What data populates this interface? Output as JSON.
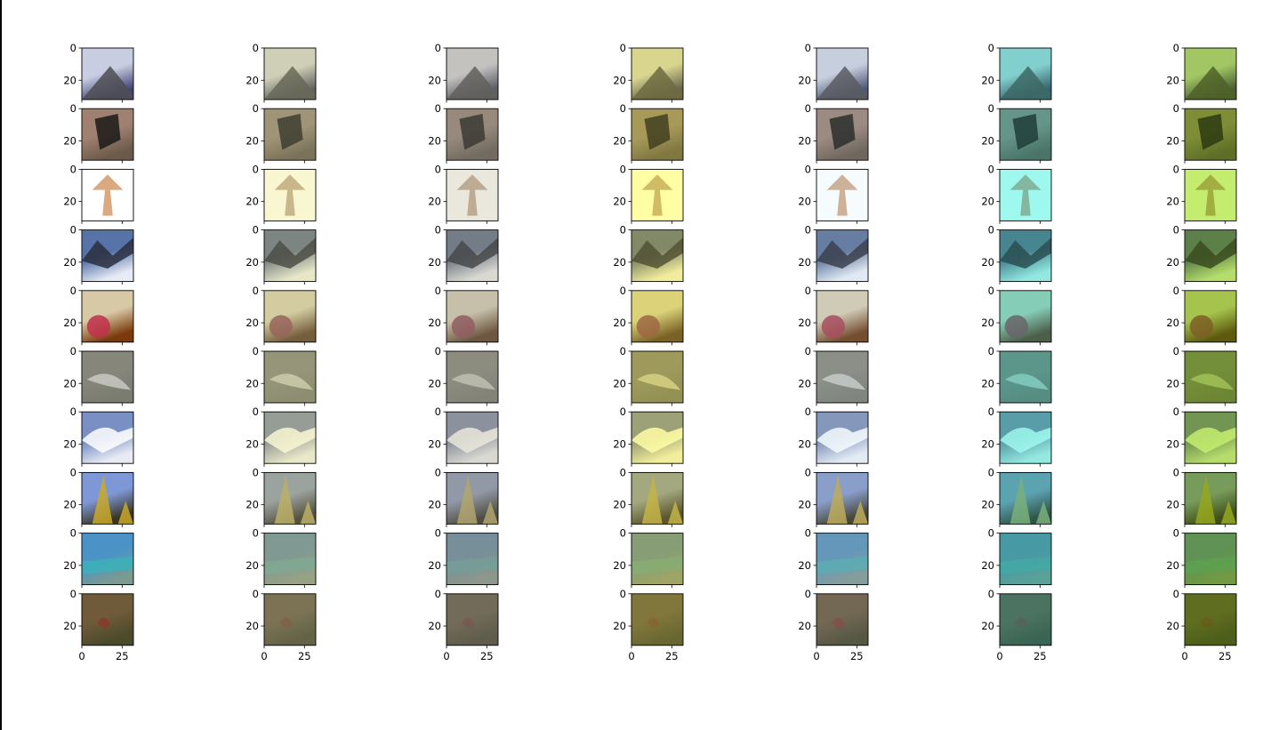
{
  "chart_data": {
    "type": "image-grid",
    "rows": 10,
    "cols": 7,
    "image_extent": [
      0,
      32
    ],
    "xticks": [
      0,
      25
    ],
    "yticks": [
      0,
      20
    ],
    "xlabel": "",
    "ylabel": "",
    "title": "",
    "column_tints": [
      "original",
      "sepia-yellow",
      "sepia-gray",
      "yellow",
      "pink-cyan",
      "cyan",
      "lime"
    ],
    "row_subjects": [
      "volcano",
      "rock",
      "lamp",
      "snowy-mountain",
      "bicycle",
      "shark",
      "clouds-mountain",
      "pagoda",
      "beach",
      "animal-grass"
    ],
    "palette": {
      "tints": {
        "original": "#9aa0b8",
        "sepia-yellow": "#b6b48a",
        "sepia-gray": "#a5a395",
        "yellow": "#c2bc55",
        "pink-cyan": "#a9b6bb",
        "cyan": "#4fb5a8",
        "lime": "#7aa81a"
      }
    }
  }
}
